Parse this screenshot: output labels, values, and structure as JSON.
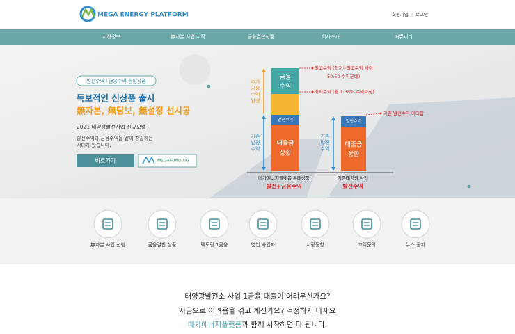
{
  "header": {
    "logo": "MEGA ENERGY PLATFORM",
    "links": [
      "회원가입",
      "로그인"
    ]
  },
  "nav": [
    "시장정보",
    "無자본 사업 시작",
    "금융결합상품",
    "회사소개",
    "커뮤니티"
  ],
  "hero": {
    "tag": "발전수익+금융수익 결합상품",
    "headline": "독보적인 신상품 출시",
    "subheadline": "無자본, 無담보, 無설정 선시공",
    "model": "2021 태양광발전사업 신규모델",
    "description": [
      "발전수익과 금융수익을 같이 창출하는",
      "시대가 왔습니다."
    ],
    "button": "바로가기",
    "partner": "MEGAFUNDING"
  },
  "diagram": {
    "left_bar": {
      "finance": [
        "금융",
        "수익"
      ],
      "power": "발전수익",
      "loan": [
        "대출금",
        "상환"
      ],
      "caption": "메가에너지플랫폼 두레상품",
      "result": "발전+금융수익"
    },
    "right_bar": {
      "power": "발전수익",
      "loan": [
        "대출금",
        "상환"
      ],
      "caption": "기존태양광 사업",
      "result": "발전수익"
    },
    "side_labels": {
      "extra": [
        "추가",
        "금융",
        "수익",
        "발생"
      ],
      "base": [
        "기존",
        "발전",
        "수익"
      ]
    },
    "notes": {
      "max": [
        "최고수익 (최저~최고수익 사이",
        "50:50 수익분배)"
      ],
      "min": "최저수익 (월 1.38% 수익보장)",
      "existing": "기존 발전수익 미미함"
    }
  },
  "services": [
    "無자본 사업 신청",
    "금융결합 상품",
    "팩토링 1금융",
    "영업 사업자",
    "시장동향",
    "고객문의",
    "뉴스 공지"
  ],
  "intro": {
    "lines": [
      "태양광발전소 사업 1금융 대출이 어려우신가요?",
      "자금으로 어려움을 겪고 계신가요? 걱정하지 마세요"
    ],
    "highlight": "메가에너지플랫폼",
    "rest": "과 함께 시작하면 다 됩니다."
  }
}
